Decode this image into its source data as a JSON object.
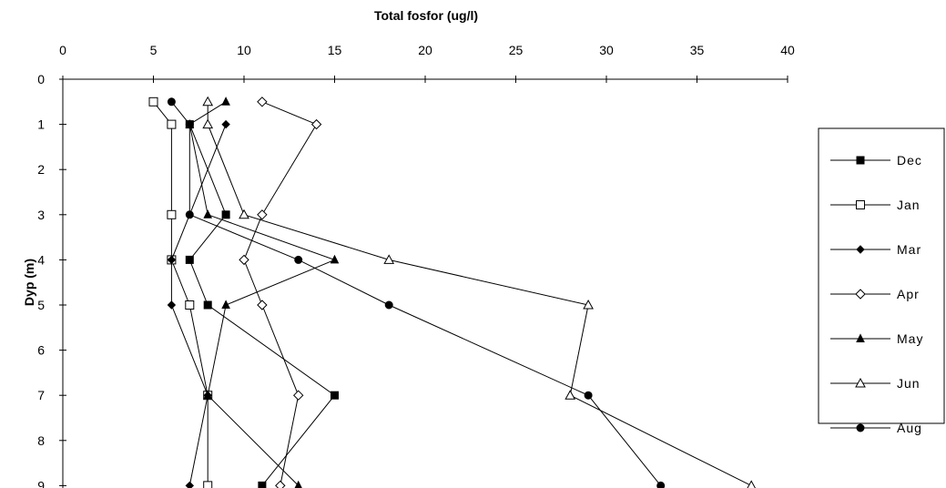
{
  "chart_data": {
    "type": "line",
    "title": "Total fosfor (ug/l)",
    "xlabel": "Total fosfor (ug/l)",
    "ylabel": "Dyp (m)",
    "x_axis_position": "top",
    "y_reversed": true,
    "xlim": [
      0,
      40
    ],
    "ylim": [
      0,
      9
    ],
    "x_ticks": [
      "0",
      "5",
      "10",
      "15",
      "20",
      "25",
      "30",
      "35",
      "40"
    ],
    "y_ticks": [
      "0",
      "1",
      "2",
      "3",
      "4",
      "5",
      "6",
      "7",
      "8",
      "9"
    ],
    "grid": false,
    "legend_position": "right",
    "series": [
      {
        "name": "Dec",
        "marker": "filled-square",
        "points": [
          [
            7,
            1
          ],
          [
            9,
            3
          ],
          [
            7,
            4
          ],
          [
            8,
            5
          ],
          [
            15,
            7
          ],
          [
            11,
            9
          ]
        ]
      },
      {
        "name": "Jan",
        "marker": "open-square",
        "points": [
          [
            5,
            0.5
          ],
          [
            6,
            1
          ],
          [
            6,
            3
          ],
          [
            6,
            4
          ],
          [
            7,
            5
          ],
          [
            8,
            7
          ],
          [
            8,
            9
          ]
        ]
      },
      {
        "name": "Mar",
        "marker": "filled-diamond",
        "points": [
          [
            9,
            1
          ],
          [
            6,
            4
          ],
          [
            6,
            5
          ],
          [
            8,
            7
          ],
          [
            7,
            9
          ]
        ]
      },
      {
        "name": "Apr",
        "marker": "open-diamond",
        "points": [
          [
            11,
            0.5
          ],
          [
            14,
            1
          ],
          [
            11,
            3
          ],
          [
            10,
            4
          ],
          [
            11,
            5
          ],
          [
            13,
            7
          ],
          [
            12,
            9
          ]
        ]
      },
      {
        "name": "May",
        "marker": "filled-triangle",
        "points": [
          [
            9,
            0.5
          ],
          [
            7,
            1
          ],
          [
            8,
            3
          ],
          [
            15,
            4
          ],
          [
            9,
            5
          ],
          [
            8,
            7
          ],
          [
            13,
            9
          ]
        ]
      },
      {
        "name": "Jun",
        "marker": "open-triangle",
        "points": [
          [
            8,
            0.5
          ],
          [
            8,
            1
          ],
          [
            10,
            3
          ],
          [
            18,
            4
          ],
          [
            29,
            5
          ],
          [
            28,
            7
          ],
          [
            38,
            9
          ]
        ]
      },
      {
        "name": "Aug",
        "marker": "filled-circle",
        "points": [
          [
            6,
            0.5
          ],
          [
            7,
            1
          ],
          [
            7,
            3
          ],
          [
            13,
            4
          ],
          [
            18,
            5
          ],
          [
            29,
            7
          ],
          [
            33,
            9
          ]
        ]
      }
    ]
  }
}
